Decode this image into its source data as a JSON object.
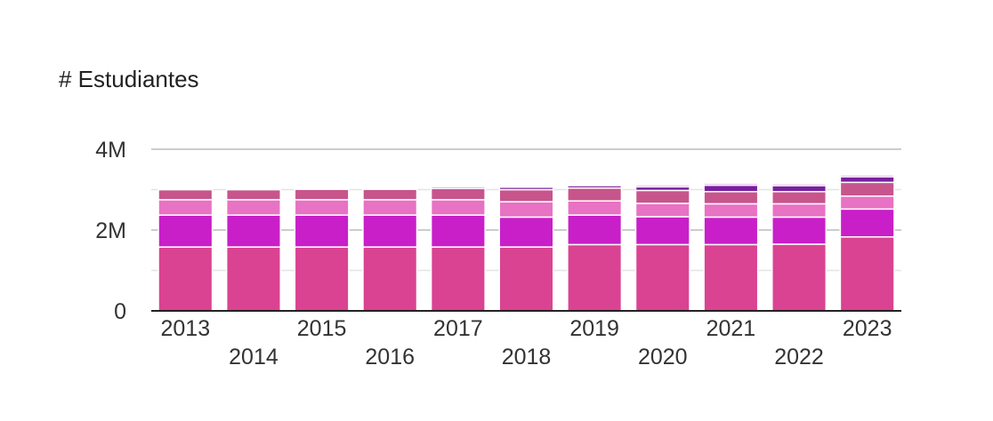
{
  "chart_data": {
    "type": "bar",
    "stacked": true,
    "title": "",
    "xlabel": "",
    "ylabel": "# Estudiantes",
    "ylim": [
      0,
      4000000
    ],
    "yticks": [
      0,
      2000000,
      4000000
    ],
    "ytick_labels": [
      "0",
      "2M",
      "4M"
    ],
    "grid": true,
    "legend": "none",
    "categories": [
      "2013",
      "2014",
      "2015",
      "2016",
      "2017",
      "2018",
      "2019",
      "2020",
      "2021",
      "2022",
      "2023"
    ],
    "series": [
      {
        "color": "#d94392",
        "values": [
          1580000,
          1580000,
          1580000,
          1580000,
          1580000,
          1580000,
          1640000,
          1640000,
          1640000,
          1650000,
          1830000
        ]
      },
      {
        "color": "#c81fc8",
        "values": [
          790000,
          790000,
          790000,
          790000,
          790000,
          740000,
          730000,
          690000,
          680000,
          670000,
          690000
        ]
      },
      {
        "color": "#e872c3",
        "values": [
          380000,
          380000,
          380000,
          380000,
          380000,
          380000,
          350000,
          330000,
          330000,
          330000,
          320000
        ]
      },
      {
        "color": "#c7558c",
        "values": [
          250000,
          250000,
          260000,
          260000,
          280000,
          300000,
          320000,
          320000,
          300000,
          300000,
          340000
        ]
      },
      {
        "color": "#7a1f9e",
        "values": [
          30000,
          30000,
          30000,
          30000,
          40000,
          60000,
          60000,
          90000,
          160000,
          150000,
          140000
        ]
      },
      {
        "color": "#b23fc0",
        "values": [
          20000,
          20000,
          20000,
          20000,
          20000,
          30000,
          30000,
          40000,
          40000,
          40000,
          40000
        ]
      }
    ]
  }
}
